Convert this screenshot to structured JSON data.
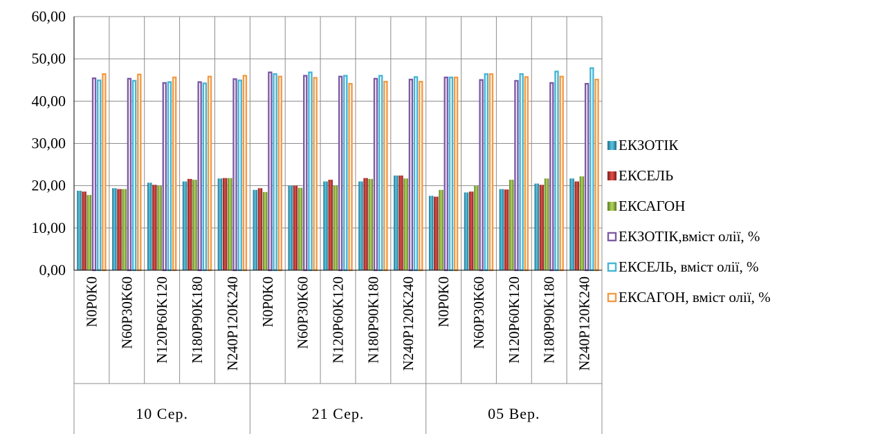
{
  "top_text": "",
  "chart_data": {
    "type": "bar",
    "title": "",
    "xlabel": "",
    "ylabel": "",
    "ylim": [
      0,
      60
    ],
    "yticks": [
      "0,00",
      "10,00",
      "20,00",
      "30,00",
      "40,00",
      "50,00",
      "60,00"
    ],
    "grid": true,
    "legend_position": "right",
    "groups": [
      {
        "label": "10 Сер.",
        "count": 5
      },
      {
        "label": "21 Сер.",
        "count": 5
      },
      {
        "label": "05 Вер.",
        "count": 5
      }
    ],
    "categories": [
      "N0P0K0",
      "N60P30K60",
      "N120P60K120",
      "N180P90K180",
      "N240P120K240",
      "N0P0K0",
      "N60P30K60",
      "N120P60K120",
      "N180P90K180",
      "N240P120K240",
      "N0P0K0",
      "N60P30K60",
      "N120P60K120",
      "N180P90K180",
      "N240P120K240"
    ],
    "series": [
      {
        "name": "ЕКЗОТІК",
        "style": "solid",
        "color": "#2b9fc1",
        "values": [
          18.8,
          19.4,
          20.7,
          21.0,
          21.7,
          19.0,
          20.0,
          21.0,
          21.0,
          22.4,
          17.6,
          18.4,
          19.2,
          20.5,
          21.7
        ]
      },
      {
        "name": "ЕКСЕЛЬ",
        "style": "solid",
        "color": "#c0332d",
        "values": [
          18.6,
          19.2,
          20.2,
          21.6,
          21.8,
          19.4,
          20.0,
          21.4,
          21.8,
          22.4,
          17.4,
          18.6,
          19.1,
          20.2,
          21.0
        ]
      },
      {
        "name": "ЕКСАГОН",
        "style": "solid",
        "color": "#8db13c",
        "values": [
          17.8,
          19.2,
          20.0,
          21.4,
          21.8,
          18.5,
          19.5,
          20.0,
          21.6,
          21.7,
          19.0,
          20.0,
          21.4,
          21.7,
          22.2
        ]
      },
      {
        "name": "ЕКЗОТІК,вміст олії, %",
        "style": "outline",
        "color": "#7e5aa6",
        "values": [
          45.6,
          45.5,
          44.5,
          44.7,
          45.4,
          47.0,
          46.2,
          46.0,
          45.5,
          45.3,
          45.8,
          45.2,
          45.0,
          44.5,
          44.3
        ]
      },
      {
        "name": "ЕКСЕЛЬ, вміст олії, %",
        "style": "outline",
        "color": "#45b5d6",
        "values": [
          45.1,
          45.0,
          44.7,
          44.4,
          45.1,
          46.6,
          47.0,
          46.2,
          46.2,
          45.9,
          45.8,
          46.6,
          46.6,
          47.2,
          48.0
        ]
      },
      {
        "name": "ЕКСАГОН, вміст олії, %",
        "style": "outline",
        "color": "#f39a44",
        "values": [
          46.6,
          46.5,
          45.8,
          46.0,
          46.2,
          46.0,
          45.7,
          44.3,
          44.8,
          44.8,
          45.8,
          46.6,
          45.9,
          46.0,
          45.3
        ]
      }
    ]
  }
}
